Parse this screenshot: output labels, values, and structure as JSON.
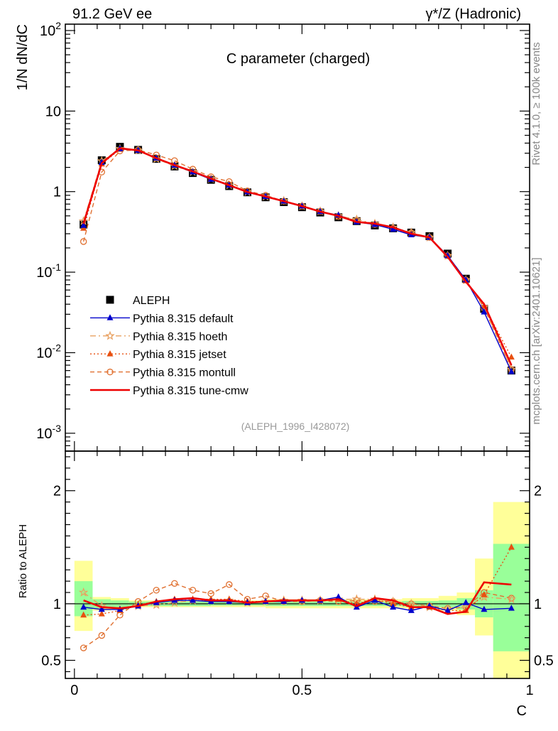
{
  "header": {
    "left_label": "91.2 GeV ee",
    "right_label": "γ*/Z (Hadronic)",
    "side_top": "Rivet 4.1.0, ≥ 100k events",
    "side_bottom": "mcplots.cern.ch [arXiv:2401.10621]"
  },
  "colors": {
    "data": "#000000",
    "default": "#0000cc",
    "hoeth": "#e8a060",
    "jetset": "#e85010",
    "montull": "#e07030",
    "cmw": "#ee0000",
    "band_inner": "#99ff99",
    "band_outer": "#ffff99"
  },
  "chart_data": [
    {
      "type": "line",
      "title": "C parameter (charged)",
      "ylabel": "1/N  dN/dC",
      "annotation": "(ALEPH_1996_I428072)",
      "yscale": "log",
      "ylim": [
        0.0006,
        120
      ],
      "xlim": [
        -0.02,
        1.0
      ],
      "y_tick_labels": [
        "10^2",
        "10",
        "1",
        "10^-1",
        "10^-2",
        "10^-3"
      ],
      "x": [
        0.02,
        0.06,
        0.1,
        0.14,
        0.18,
        0.22,
        0.26,
        0.3,
        0.34,
        0.38,
        0.42,
        0.46,
        0.5,
        0.54,
        0.58,
        0.62,
        0.66,
        0.7,
        0.74,
        0.78,
        0.82,
        0.86,
        0.9,
        0.96
      ],
      "series": [
        {
          "name": "ALEPH",
          "key": "data",
          "marker": "square",
          "values": [
            0.39,
            2.45,
            3.6,
            3.3,
            2.55,
            2.05,
            1.7,
            1.4,
            1.17,
            0.98,
            0.85,
            0.74,
            0.64,
            0.55,
            0.48,
            0.43,
            0.38,
            0.35,
            0.31,
            0.28,
            0.17,
            0.083,
            0.035,
            0.006
          ]
        },
        {
          "name": "Pythia 8.315 default",
          "key": "default",
          "marker": "triangle",
          "values": [
            0.38,
            2.3,
            3.4,
            3.25,
            2.6,
            2.12,
            1.75,
            1.42,
            1.2,
            0.99,
            0.87,
            0.76,
            0.66,
            0.565,
            0.51,
            0.42,
            0.39,
            0.34,
            0.29,
            0.27,
            0.16,
            0.08,
            0.032,
            0.0058
          ]
        },
        {
          "name": "Pythia 8.315 hoeth",
          "key": "hoeth",
          "marker": "star",
          "values": [
            0.43,
            2.4,
            3.4,
            3.25,
            2.55,
            2.08,
            1.75,
            1.44,
            1.2,
            0.99,
            0.87,
            0.77,
            0.66,
            0.57,
            0.5,
            0.45,
            0.4,
            0.36,
            0.31,
            0.27,
            0.16,
            0.08,
            0.037,
            0.0062
          ]
        },
        {
          "name": "Pythia 8.315 jetset",
          "key": "jetset",
          "marker": "triangle",
          "values": [
            0.35,
            2.2,
            3.35,
            3.25,
            2.6,
            2.14,
            1.76,
            1.45,
            1.22,
            1.0,
            0.87,
            0.76,
            0.66,
            0.57,
            0.5,
            0.43,
            0.4,
            0.35,
            0.3,
            0.27,
            0.16,
            0.078,
            0.038,
            0.0088
          ]
        },
        {
          "name": "Pythia 8.315 montull",
          "key": "montull",
          "marker": "circle",
          "values": [
            0.24,
            1.75,
            3.2,
            3.3,
            2.85,
            2.42,
            1.9,
            1.53,
            1.33,
            1.02,
            0.9,
            0.76,
            0.66,
            0.57,
            0.49,
            0.44,
            0.39,
            0.35,
            0.31,
            0.27,
            0.16,
            0.08,
            0.036,
            0.0062
          ]
        },
        {
          "name": "Pythia 8.315 tune-cmw",
          "key": "cmw",
          "marker": "none",
          "values": [
            0.4,
            2.25,
            3.45,
            3.25,
            2.6,
            2.13,
            1.78,
            1.45,
            1.2,
            0.99,
            0.87,
            0.76,
            0.66,
            0.565,
            0.5,
            0.42,
            0.4,
            0.36,
            0.3,
            0.27,
            0.155,
            0.076,
            0.04,
            0.007
          ]
        }
      ]
    },
    {
      "type": "line",
      "ylabel": "Ratio to ALEPH",
      "xlabel": "C",
      "ylim": [
        0.34,
        2.35
      ],
      "xlim": [
        -0.02,
        1.0
      ],
      "x_tick_labels": [
        "0",
        "0.5",
        "1"
      ],
      "y_tick_labels": [
        "2",
        "1",
        "0.5"
      ],
      "reference_line": 1,
      "band_bins": [
        {
          "lo": 0.0,
          "hi": 0.04,
          "inner": [
            0.89,
            1.2
          ],
          "outer": [
            0.76,
            1.38
          ]
        },
        {
          "lo": 0.04,
          "hi": 0.08,
          "inner": [
            0.96,
            1.04
          ],
          "outer": [
            0.94,
            1.06
          ]
        },
        {
          "lo": 0.08,
          "hi": 0.12,
          "inner": [
            0.97,
            1.03
          ],
          "outer": [
            0.95,
            1.05
          ]
        },
        {
          "lo": 0.12,
          "hi": 0.3,
          "inner": [
            0.98,
            1.02
          ],
          "outer": [
            0.97,
            1.03
          ]
        },
        {
          "lo": 0.3,
          "hi": 0.42,
          "inner": [
            0.985,
            1.015
          ],
          "outer": [
            0.97,
            1.03
          ]
        },
        {
          "lo": 0.42,
          "hi": 0.72,
          "inner": [
            0.98,
            1.02
          ],
          "outer": [
            0.96,
            1.04
          ]
        },
        {
          "lo": 0.72,
          "hi": 0.8,
          "inner": [
            0.975,
            1.025
          ],
          "outer": [
            0.96,
            1.05
          ]
        },
        {
          "lo": 0.8,
          "hi": 0.84,
          "inner": [
            0.97,
            1.03
          ],
          "outer": [
            0.94,
            1.07
          ]
        },
        {
          "lo": 0.84,
          "hi": 0.88,
          "inner": [
            0.95,
            1.05
          ],
          "outer": [
            0.9,
            1.1
          ]
        },
        {
          "lo": 0.88,
          "hi": 0.92,
          "inner": [
            0.88,
            1.12
          ],
          "outer": [
            0.72,
            1.4
          ]
        },
        {
          "lo": 0.92,
          "hi": 1.0,
          "inner": [
            0.58,
            1.53
          ],
          "outer": [
            0.2,
            1.9
          ]
        }
      ],
      "x": [
        0.02,
        0.06,
        0.1,
        0.14,
        0.18,
        0.22,
        0.26,
        0.3,
        0.34,
        0.38,
        0.42,
        0.46,
        0.5,
        0.54,
        0.58,
        0.62,
        0.66,
        0.7,
        0.74,
        0.78,
        0.82,
        0.86,
        0.9,
        0.96
      ],
      "series": [
        {
          "name": "Pythia 8.315 default",
          "key": "default",
          "marker": "triangle",
          "values": [
            0.97,
            0.95,
            0.95,
            0.98,
            1.01,
            1.03,
            1.03,
            1.02,
            1.02,
            1.01,
            1.02,
            1.02,
            1.03,
            1.03,
            1.06,
            0.97,
            1.03,
            0.97,
            0.94,
            0.98,
            0.94,
            1.01,
            0.95,
            0.96
          ]
        },
        {
          "name": "Pythia 8.315 hoeth",
          "key": "hoeth",
          "marker": "star",
          "values": [
            1.1,
            0.98,
            0.95,
            0.98,
            0.99,
            1.01,
            1.03,
            1.03,
            1.03,
            1.01,
            1.02,
            1.03,
            1.03,
            1.03,
            1.04,
            1.04,
            1.04,
            1.02,
            1.0,
            0.97,
            0.95,
            0.97,
            1.06,
            1.04
          ]
        },
        {
          "name": "Pythia 8.315 jetset",
          "key": "jetset",
          "marker": "triangle",
          "values": [
            0.9,
            0.91,
            0.94,
            0.99,
            1.02,
            1.04,
            1.04,
            1.04,
            1.04,
            1.02,
            1.02,
            1.03,
            1.03,
            1.03,
            1.04,
            1.0,
            1.04,
            1.0,
            0.97,
            0.97,
            0.94,
            0.94,
            1.08,
            1.5
          ]
        },
        {
          "name": "Pythia 8.315 montull",
          "key": "montull",
          "marker": "circle",
          "values": [
            0.61,
            0.72,
            0.9,
            1.02,
            1.12,
            1.18,
            1.12,
            1.09,
            1.17,
            1.04,
            1.07,
            1.02,
            1.02,
            1.03,
            1.02,
            1.03,
            1.02,
            1.02,
            1.0,
            0.98,
            0.96,
            0.97,
            1.1,
            1.05
          ]
        },
        {
          "name": "Pythia 8.315 tune-cmw",
          "key": "cmw",
          "marker": "none",
          "values": [
            1.03,
            0.97,
            0.96,
            0.98,
            1.02,
            1.04,
            1.05,
            1.03,
            1.03,
            1.01,
            1.02,
            1.03,
            1.03,
            1.03,
            1.04,
            0.98,
            1.05,
            1.03,
            0.97,
            0.97,
            0.91,
            0.93,
            1.19,
            1.17
          ]
        }
      ]
    }
  ]
}
